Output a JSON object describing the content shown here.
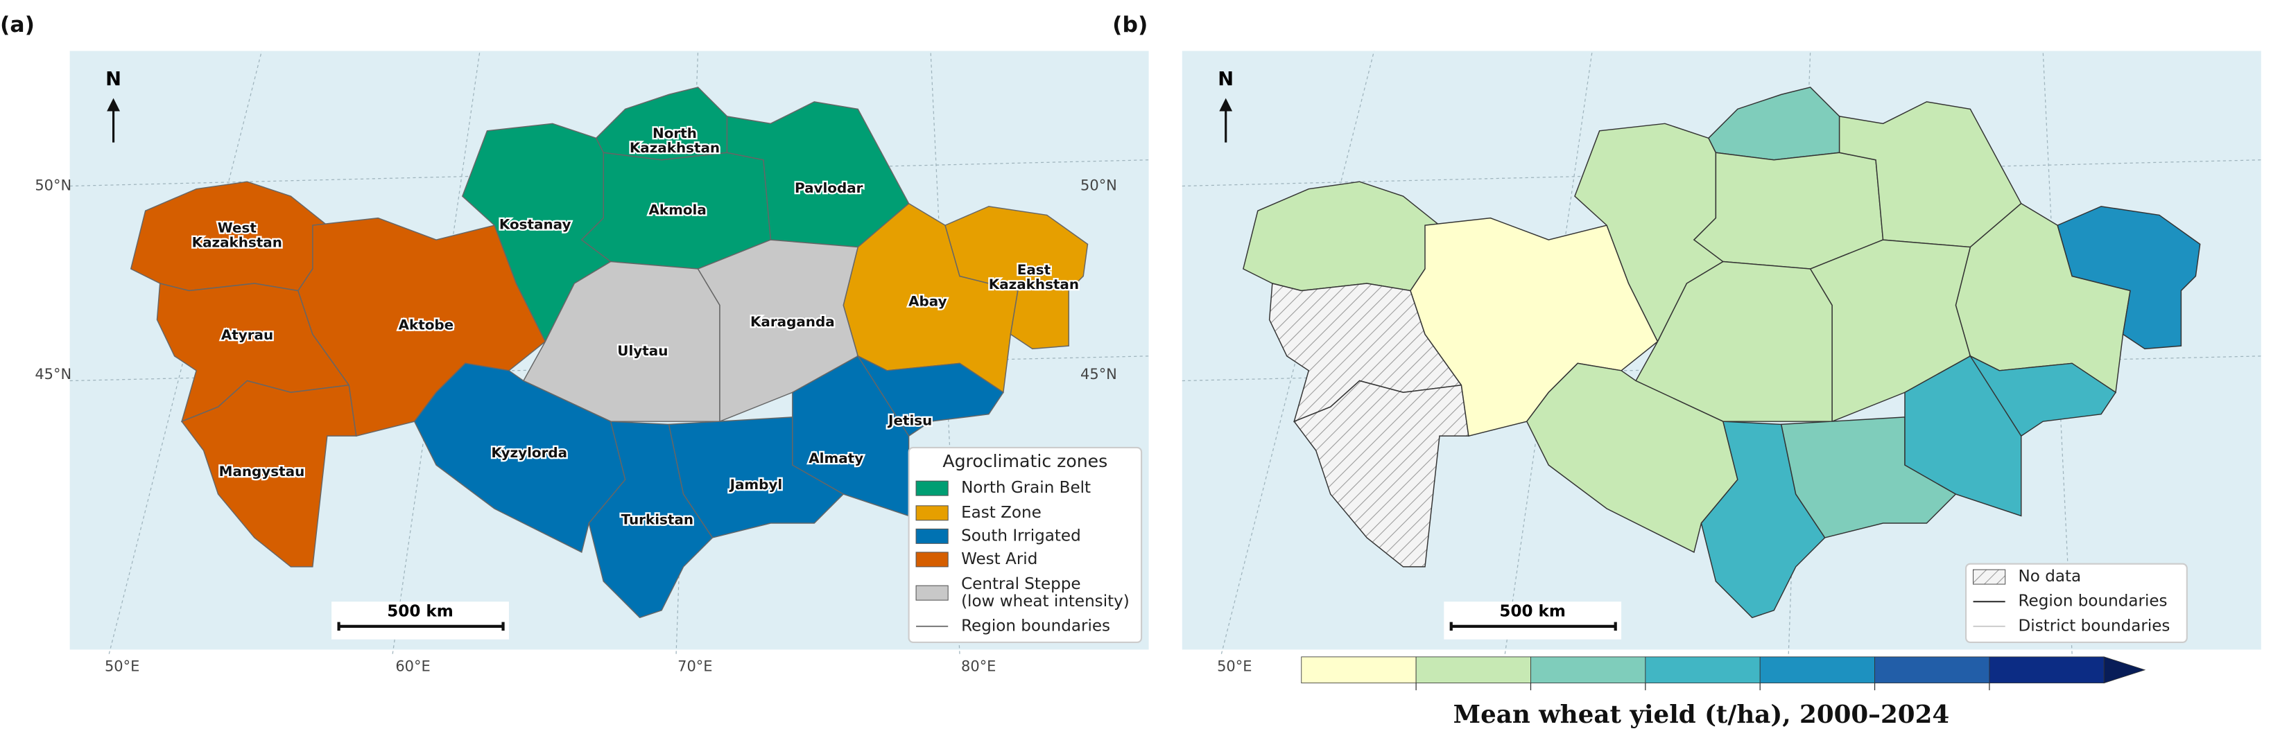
{
  "panels": [
    {
      "tag": "(a)",
      "north": "N",
      "scale_bar": "500 km",
      "lat_labels": [
        "50°N",
        "45°N"
      ],
      "lon_labels": [
        "50°E",
        "60°E",
        "70°E",
        "80°E"
      ],
      "regions": [
        [
          "West",
          "Kazakhstan"
        ],
        "Atyrau",
        "Mangystau",
        "Aktobe",
        "Kostanay",
        [
          "North",
          "Kazakhstan"
        ],
        "Akmola",
        "Pavlodar",
        "Abay",
        [
          "East",
          "Kazakhstan"
        ],
        "Ulytau",
        "Karaganda",
        "Kyzylorda",
        "Turkistan",
        "Jambyl",
        "Almaty",
        "Jetisu"
      ],
      "legend": {
        "title": "Agroclimatic zones",
        "zones": [
          {
            "name": "North Grain Belt",
            "color": "#009e73"
          },
          {
            "name": "East Zone",
            "color": "#e69f00"
          },
          {
            "name": "South Irrigated",
            "color": "#0072b2"
          },
          {
            "name": "West Arid",
            "color": "#d55e00"
          },
          {
            "name": [
              "Central Steppe",
              "(low wheat intensity)"
            ],
            "color": "#c8c8c8"
          }
        ],
        "boundary": "Region boundaries"
      }
    },
    {
      "tag": "(b)",
      "north": "N",
      "scale_bar": "500 km",
      "lat_labels": [
        "50°N",
        "45°N"
      ],
      "lon_labels": [
        "50°E"
      ],
      "legend": {
        "no_data": "No data",
        "region_boundaries": "Region boundaries",
        "district_boundaries": "District boundaries"
      }
    }
  ],
  "colorbar": {
    "title": "Mean wheat yield (t/ha), 2000–2024",
    "colors": [
      "#ffffcc",
      "#c7e9b4",
      "#7fcdbb",
      "#41b6c4",
      "#1d91c0",
      "#225ea8",
      "#0c2c84"
    ],
    "extend_color": "#081d58"
  }
}
